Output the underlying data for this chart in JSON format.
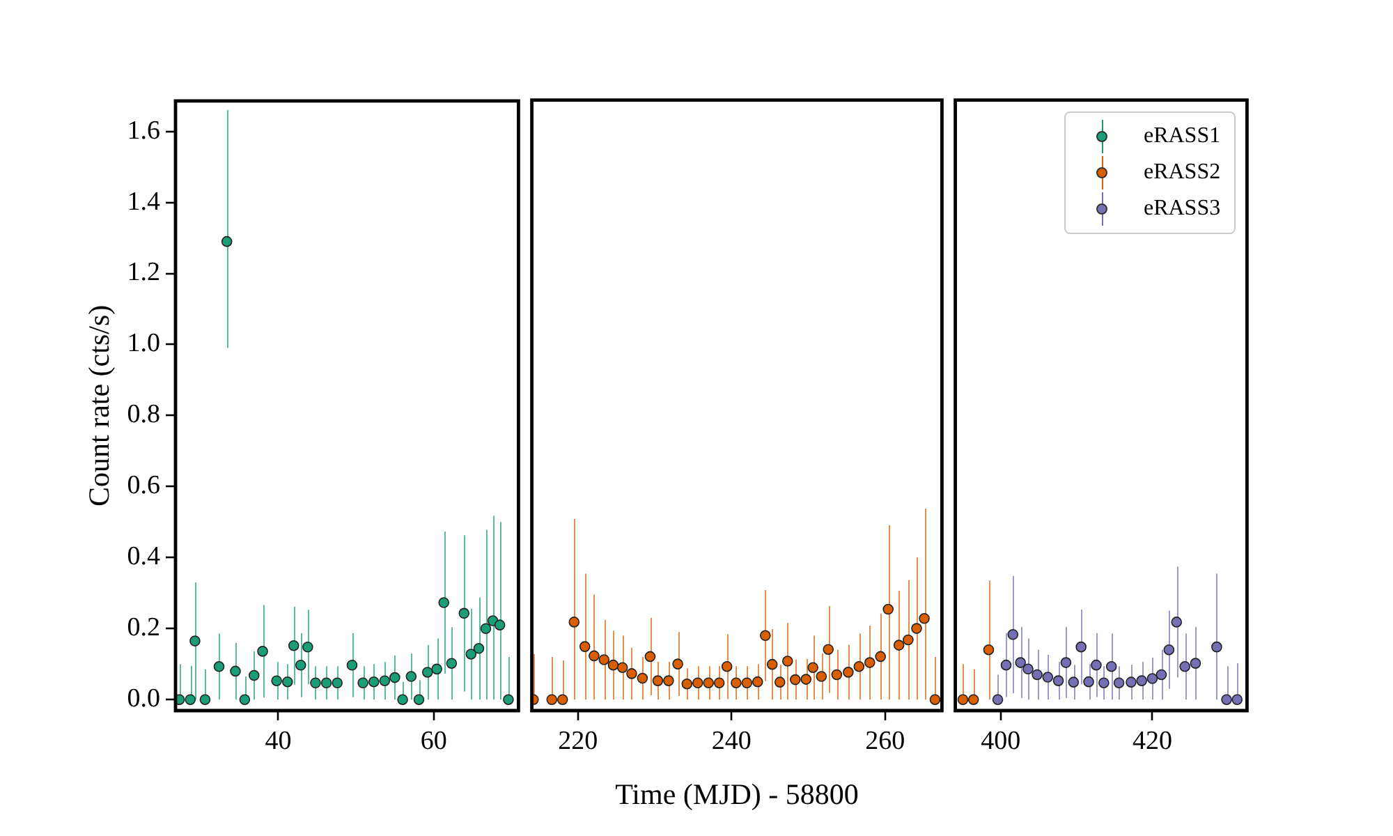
{
  "chart_data": [
    {
      "type": "scatter",
      "ylabel": "Count rate (cts/s)",
      "xlim": [
        26.8,
        70.9
      ],
      "xticks": [
        40,
        60
      ],
      "ylim": [
        -0.031,
        1.686
      ],
      "yticks": [
        {
          "value": 0,
          "label": "0.0"
        },
        {
          "value": 0.2,
          "label": "0.2"
        },
        {
          "value": 0.4,
          "label": "0.4"
        },
        {
          "value": 0.6,
          "label": "0.6"
        },
        {
          "value": 0.8,
          "label": "0.8"
        },
        {
          "value": 1.0,
          "label": "1.0"
        },
        {
          "value": 1.2,
          "label": "1.2"
        },
        {
          "value": 1.4,
          "label": "1.4"
        },
        {
          "value": 1.6,
          "label": "1.6"
        }
      ],
      "marker": "circle",
      "series": [
        {
          "name": "eRASS1",
          "color": "#1b9e77",
          "x": [
            27.3,
            28.7,
            29.3,
            30.6,
            32.4,
            33.4,
            34.5,
            35.7,
            36.9,
            38.0,
            39.8,
            41.2,
            42.0,
            42.9,
            43.8,
            44.8,
            46.2,
            47.6,
            49.5,
            50.9,
            52.3,
            53.7,
            55.0,
            56.0,
            57.1,
            58.1,
            59.2,
            60.4,
            61.3,
            62.3,
            63.9,
            64.8,
            65.8,
            66.7,
            67.6,
            68.5,
            69.6
          ],
          "values": [
            0,
            0,
            0.165,
            0,
            0.093,
            1.29,
            0.08,
            0,
            0.068,
            0.136,
            0.053,
            0.05,
            0.152,
            0.097,
            0.148,
            0.047,
            0.047,
            0.047,
            0.097,
            0.047,
            0.05,
            0.053,
            0.062,
            0,
            0.065,
            0,
            0.077,
            0.086,
            0.273,
            0.102,
            0.243,
            0.128,
            0.144,
            0.2,
            0.222,
            0.21,
            0
          ],
          "errors": [
            [
              0,
              0.1
            ],
            [
              0,
              0.095
            ],
            0.165,
            [
              0,
              0.085
            ],
            0.093,
            [
              0.99,
              1.66
            ],
            0.08,
            [
              0,
              0.065
            ],
            0.068,
            0.13,
            0.053,
            0.05,
            0.11,
            0.09,
            0.105,
            0.047,
            0.047,
            0.047,
            0.09,
            0.047,
            0.05,
            0.053,
            0.062,
            [
              0,
              0.05
            ],
            0.065,
            [
              0,
              0.055
            ],
            0.077,
            0.086,
            0.2,
            0.102,
            0.22,
            0.128,
            0.144,
            [
              0,
              0.478
            ],
            [
              0,
              0.518
            ],
            [
              0,
              0.5
            ],
            [
              0,
              0.12
            ]
          ]
        }
      ]
    },
    {
      "type": "scatter",
      "xlabel": "Time (MJD) - 58800",
      "xlim": [
        214.0,
        267.4
      ],
      "xticks": [
        220,
        240,
        260
      ],
      "ylim": [
        -0.031,
        1.686
      ],
      "tick_labels": "x",
      "marker": "circle",
      "series": [
        {
          "name": "eRASS2",
          "color": "#d95f02",
          "x": [
            214.2,
            216.6,
            218.0,
            219.5,
            220.9,
            222.1,
            223.4,
            224.6,
            225.8,
            227.0,
            228.4,
            229.4,
            230.4,
            231.8,
            233.0,
            234.2,
            235.6,
            237.0,
            238.4,
            239.4,
            240.6,
            242.0,
            243.4,
            244.4,
            245.3,
            246.3,
            247.3,
            248.3,
            249.7,
            250.6,
            251.7,
            252.6,
            253.7,
            255.2,
            256.6,
            258.0,
            259.4,
            260.4,
            261.8,
            263.0,
            264.1,
            265.1,
            266.5
          ],
          "values": [
            0,
            0,
            0,
            0.218,
            0.149,
            0.123,
            0.112,
            0.097,
            0.09,
            0.073,
            0.06,
            0.121,
            0.053,
            0.053,
            0.1,
            0.044,
            0.047,
            0.047,
            0.047,
            0.093,
            0.047,
            0.047,
            0.05,
            0.18,
            0.099,
            0.049,
            0.108,
            0.056,
            0.057,
            0.09,
            0.065,
            0.141,
            0.07,
            0.077,
            0.093,
            0.104,
            0.121,
            0.254,
            0.153,
            0.168,
            0.2,
            0.228,
            0
          ],
          "errors": [
            [
              0,
              0.128
            ],
            [
              0,
              0.12
            ],
            [
              0,
              0.11
            ],
            [
              0,
              0.508
            ],
            [
              0,
              0.354
            ],
            [
              0,
              0.295
            ],
            0.112,
            0.097,
            0.09,
            0.073,
            0.06,
            0.109,
            0.053,
            0.053,
            0.09,
            0.044,
            0.047,
            0.047,
            0.047,
            0.091,
            0.047,
            0.047,
            0.05,
            0.128,
            0.099,
            0.049,
            0.108,
            0.056,
            0.057,
            0.09,
            0.065,
            0.122,
            0.07,
            0.077,
            0.093,
            0.104,
            0.121,
            [
              0,
              0.49
            ],
            0.153,
            0.168,
            0.2,
            [
              0,
              0.537
            ],
            [
              0,
              0.12
            ]
          ]
        }
      ]
    },
    {
      "type": "scatter",
      "xlim": [
        394.0,
        432.5
      ],
      "xticks": [
        400,
        420
      ],
      "ylim": [
        -0.031,
        1.686
      ],
      "tick_labels": "x",
      "marker": "circle",
      "legend": "top right",
      "series": [
        {
          "color": "#d95f02",
          "x": [
            395.0,
            396.4,
            398.4
          ],
          "values": [
            0,
            0,
            0.14
          ],
          "errors": [
            [
              0,
              0.1
            ],
            [
              0,
              0.085
            ],
            [
              0,
              0.335
            ]
          ]
        },
        {
          "name": "eRASS3",
          "color": "#7570b3",
          "x": [
            399.6,
            400.7,
            401.6,
            402.6,
            403.6,
            404.8,
            406.2,
            407.6,
            408.6,
            409.6,
            410.6,
            411.6,
            412.6,
            413.6,
            414.6,
            415.6,
            417.2,
            418.6,
            420.0,
            421.2,
            422.2,
            423.2,
            424.3,
            425.7,
            428.5,
            429.8,
            431.2
          ],
          "values": [
            0,
            0.097,
            0.183,
            0.104,
            0.086,
            0.07,
            0.063,
            0.053,
            0.104,
            0.049,
            0.148,
            0.05,
            0.097,
            0.047,
            0.093,
            0.047,
            0.049,
            0.053,
            0.059,
            0.07,
            0.14,
            0.218,
            0.093,
            0.102,
            0.148,
            0,
            0
          ],
          "errors": [
            [
              0,
              0.07
            ],
            0.09,
            0.165,
            0.1,
            0.086,
            0.07,
            0.063,
            0.053,
            0.1,
            0.049,
            0.105,
            0.05,
            0.09,
            0.047,
            0.093,
            0.047,
            0.049,
            0.053,
            0.059,
            0.07,
            0.11,
            0.156,
            0.093,
            0.102,
            [
              0,
              0.354
            ],
            [
              0,
              0.094
            ],
            [
              0,
              0.102
            ]
          ]
        }
      ]
    }
  ]
}
